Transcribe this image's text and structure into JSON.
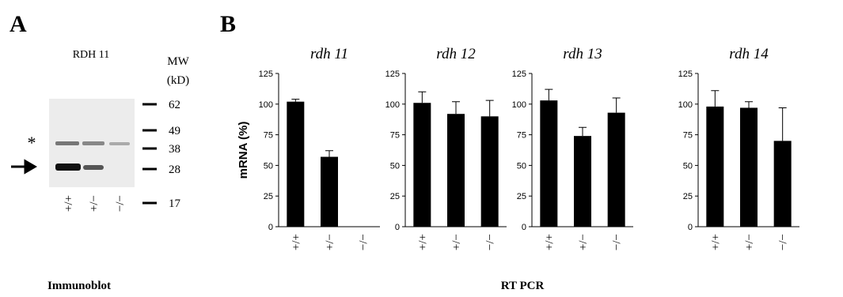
{
  "panel_a": {
    "label": "A",
    "title": "RDH 11",
    "mw_header": [
      "MW",
      "(kD)"
    ],
    "mw_markers": [
      62,
      49,
      38,
      28,
      17
    ],
    "asterisk": "*",
    "lanes": [
      "+/+",
      "+/−",
      "−/−"
    ],
    "caption": "Immunoblot"
  },
  "panel_b": {
    "label": "B",
    "caption": "RT PCR"
  },
  "chart_data": [
    {
      "type": "bar",
      "title": "rdh 11",
      "ylabel": "mRNA (%)",
      "categories": [
        "+/+",
        "+/−",
        "−/−"
      ],
      "values": [
        102,
        57,
        0
      ],
      "errors": [
        2,
        5,
        0
      ],
      "color": "#000000",
      "ylim": [
        0,
        125
      ],
      "yticks": [
        0,
        25,
        50,
        75,
        100,
        125
      ]
    },
    {
      "type": "bar",
      "title": "rdh 12",
      "categories": [
        "+/+",
        "+/−",
        "−/−"
      ],
      "values": [
        101,
        92,
        90
      ],
      "errors": [
        9,
        10,
        13
      ],
      "color": "#000000",
      "ylim": [
        0,
        125
      ],
      "yticks": [
        0,
        25,
        50,
        75,
        100,
        125
      ]
    },
    {
      "type": "bar",
      "title": "rdh 13",
      "categories": [
        "+/+",
        "+/−",
        "−/−"
      ],
      "values": [
        103,
        74,
        93
      ],
      "errors": [
        9,
        7,
        12
      ],
      "color": "#000000",
      "ylim": [
        0,
        125
      ],
      "yticks": [
        0,
        25,
        50,
        75,
        100,
        125
      ]
    },
    {
      "type": "bar",
      "title": "rdh 14",
      "categories": [
        "+/+",
        "+/−",
        "−/−"
      ],
      "values": [
        98,
        97,
        70
      ],
      "errors": [
        13,
        5,
        27
      ],
      "color": "#000000",
      "ylim": [
        0,
        125
      ],
      "yticks": [
        0,
        25,
        50,
        75,
        100,
        125
      ]
    }
  ]
}
